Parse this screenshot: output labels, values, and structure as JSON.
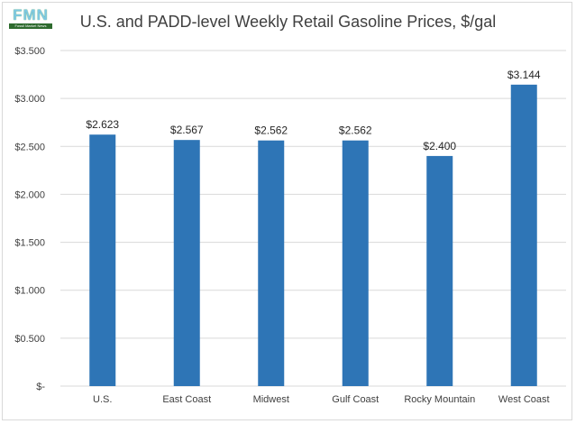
{
  "logo": {
    "letters": "FMN",
    "tagline": "Fossil Market News"
  },
  "chart_data": {
    "type": "bar",
    "title": "U.S. and PADD-level Weekly Retail Gasoline Prices, $/gal",
    "categories": [
      "U.S.",
      "East Coast",
      "Midwest",
      "Gulf Coast",
      "Rocky Mountain",
      "West Coast"
    ],
    "values": [
      2.623,
      2.567,
      2.562,
      2.562,
      2.4,
      3.144
    ],
    "data_labels": [
      "$2.623",
      "$2.567",
      "$2.562",
      "$2.562",
      "$2.400",
      "$3.144"
    ],
    "ylim": [
      0,
      3.5
    ],
    "yticks": [
      0,
      0.5,
      1.0,
      1.5,
      2.0,
      2.5,
      3.0,
      3.5
    ],
    "ytick_labels": [
      "$-",
      "$0.500",
      "$1.000",
      "$1.500",
      "$2.000",
      "$2.500",
      "$3.000",
      "$3.500"
    ],
    "grid": true,
    "bar_color": "#2e75b6",
    "grid_color": "#d9d9d9",
    "legend": "none"
  }
}
